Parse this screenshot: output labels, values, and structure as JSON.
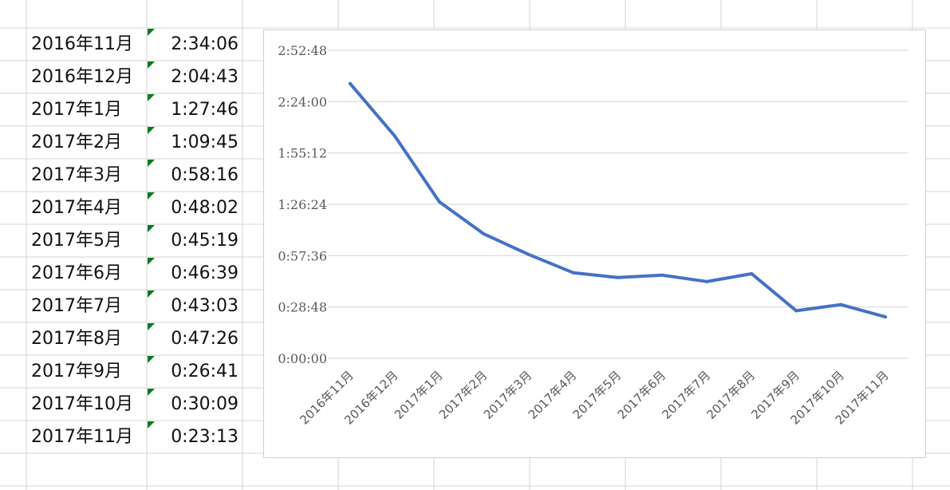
{
  "sheet": {
    "rows": [
      {
        "month": "2016年11月",
        "time": "2:34:06"
      },
      {
        "month": "2016年12月",
        "time": "2:04:43"
      },
      {
        "month": "2017年1月",
        "time": "1:27:46"
      },
      {
        "month": "2017年2月",
        "time": "1:09:45"
      },
      {
        "month": "2017年3月",
        "time": "0:58:16"
      },
      {
        "month": "2017年4月",
        "time": "0:48:02"
      },
      {
        "month": "2017年5月",
        "time": "0:45:19"
      },
      {
        "month": "2017年6月",
        "time": "0:46:39"
      },
      {
        "month": "2017年7月",
        "time": "0:43:03"
      },
      {
        "month": "2017年8月",
        "time": "0:47:26"
      },
      {
        "month": "2017年9月",
        "time": "0:26:41"
      },
      {
        "month": "2017年10月",
        "time": "0:30:09"
      },
      {
        "month": "2017年11月",
        "time": "0:23:13"
      }
    ],
    "gridline_color": "#d4d4d4",
    "error_indicator_color": "#0b7a1f"
  },
  "chart_data": {
    "type": "line",
    "categories": [
      "2016年11月",
      "2016年12月",
      "2017年1月",
      "2017年2月",
      "2017年3月",
      "2017年4月",
      "2017年5月",
      "2017年6月",
      "2017年7月",
      "2017年8月",
      "2017年9月",
      "2017年10月",
      "2017年11月"
    ],
    "series": [
      {
        "values": [
          "2:34:06",
          "2:04:43",
          "1:27:46",
          "1:09:45",
          "0:58:16",
          "0:48:02",
          "0:45:19",
          "0:46:39",
          "0:43:03",
          "0:47:26",
          "0:26:41",
          "0:30:09",
          "0:23:13"
        ],
        "color": "#4472c4"
      }
    ],
    "ylim": [
      "0:00:00",
      "2:52:48"
    ],
    "yticks": [
      "0:00:00",
      "0:28:48",
      "0:57:36",
      "1:26:24",
      "1:55:12",
      "2:24:00",
      "2:52:48"
    ],
    "title": "",
    "xlabel": "",
    "ylabel": "",
    "grid": true,
    "legend": "none"
  }
}
